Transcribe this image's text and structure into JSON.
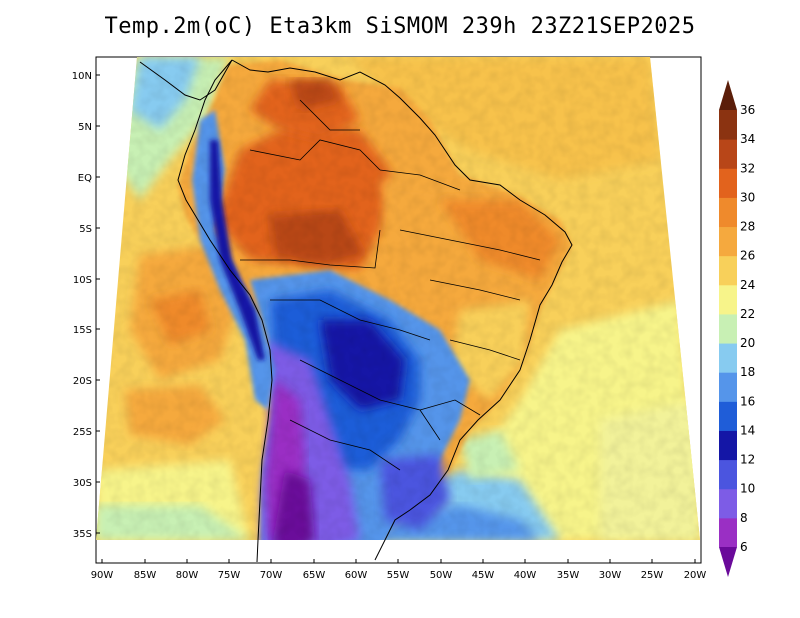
{
  "title": "Temp.2m(oC) Eta3km SiSMOM 239h 23Z21SEP2025",
  "map": {
    "lat_ticks": [
      "10N",
      "5N",
      "EQ",
      "5S",
      "10S",
      "15S",
      "20S",
      "25S",
      "30S",
      "35S"
    ],
    "lon_ticks": [
      "90W",
      "85W",
      "80W",
      "75W",
      "70W",
      "65W",
      "60W",
      "55W",
      "50W",
      "45W",
      "40W",
      "35W",
      "30W",
      "25W",
      "20W"
    ]
  },
  "colorbar": {
    "unit": "oC",
    "levels": [
      "6",
      "8",
      "10",
      "12",
      "14",
      "16",
      "18",
      "20",
      "22",
      "24",
      "26",
      "28",
      "30",
      "32",
      "34",
      "36"
    ],
    "colors": [
      "#6a0a9a",
      "#9a2fc4",
      "#7d5ce6",
      "#4b55df",
      "#1416a6",
      "#1f5dd8",
      "#5595ea",
      "#87cbf0",
      "#c8f0b4",
      "#f7f48a",
      "#f8d05a",
      "#f5a93e",
      "#ef8a2c",
      "#e2631d",
      "#b84618",
      "#8b3311",
      "#5b1e0a"
    ]
  }
}
